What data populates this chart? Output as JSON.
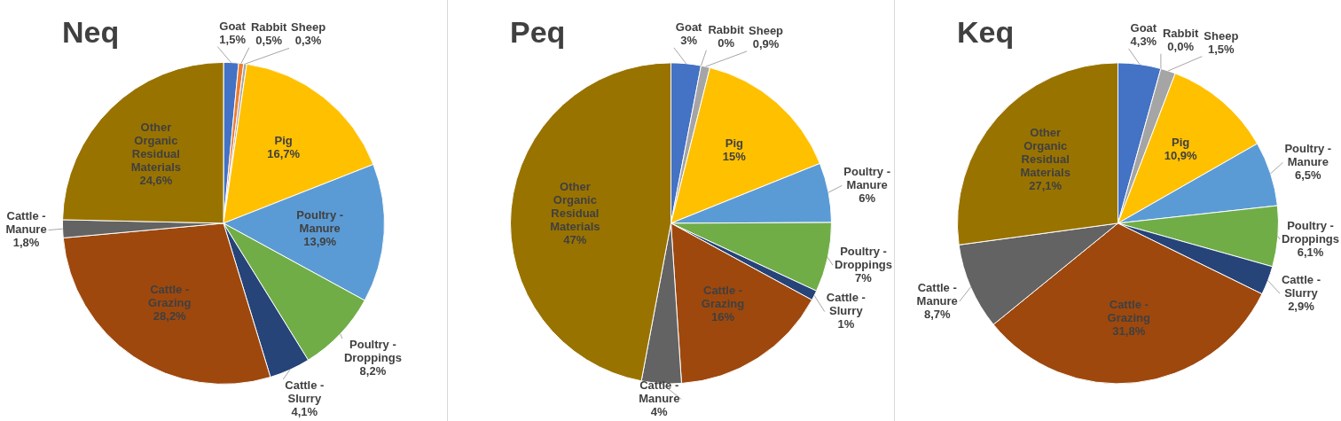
{
  "chart_data": [
    {
      "type": "pie",
      "title": "Neq",
      "legend": false,
      "categories": [
        "Goat",
        "Rabbit",
        "Sheep",
        "Pig",
        "Poultry - Manure",
        "Poultry - Droppings",
        "Cattle - Slurry",
        "Cattle - Grazing",
        "Cattle - Manure",
        "Other Organic Residual Materials"
      ],
      "values": [
        1.5,
        0.5,
        0.3,
        16.7,
        13.9,
        8.2,
        4.1,
        28.2,
        1.8,
        24.6
      ],
      "value_labels": [
        "1,5%",
        "0,5%",
        "0,3%",
        "16,7%",
        "13,9%",
        "8,2%",
        "4,1%",
        "28,2%",
        "1,8%",
        "24,6%"
      ],
      "colors": [
        "#4472c4",
        "#ed7d31",
        "#a5a5a5",
        "#ffc000",
        "#5b9bd5",
        "#70ad47",
        "#264478",
        "#9e480e",
        "#636363",
        "#997300"
      ]
    },
    {
      "type": "pie",
      "title": "Peq",
      "legend": false,
      "categories": [
        "Goat",
        "Rabbit",
        "Sheep",
        "Pig",
        "Poultry - Manure",
        "Poultry - Droppings",
        "Cattle - Slurry",
        "Cattle - Grazing",
        "Cattle - Manure",
        "Other Organic Residual Materials"
      ],
      "values": [
        3,
        0,
        0.9,
        15,
        6,
        7,
        1,
        16,
        4,
        47
      ],
      "value_labels": [
        "3%",
        "0%",
        "0,9%",
        "15%",
        "6%",
        "7%",
        "1%",
        "16%",
        "4%",
        "47%"
      ],
      "colors": [
        "#4472c4",
        "#ed7d31",
        "#a5a5a5",
        "#ffc000",
        "#5b9bd5",
        "#70ad47",
        "#264478",
        "#9e480e",
        "#636363",
        "#997300"
      ]
    },
    {
      "type": "pie",
      "title": "Keq",
      "legend": false,
      "categories": [
        "Goat",
        "Rabbit",
        "Sheep",
        "Pig",
        "Poultry - Manure",
        "Poultry - Droppings",
        "Cattle - Slurry",
        "Cattle - Grazing",
        "Cattle - Manure",
        "Other Organic Residual Materials"
      ],
      "values": [
        4.3,
        0.0,
        1.5,
        10.9,
        6.5,
        6.1,
        2.9,
        31.8,
        8.7,
        27.1
      ],
      "value_labels": [
        "4,3%",
        "0,0%",
        "1,5%",
        "10,9%",
        "6,5%",
        "6,1%",
        "2,9%",
        "31,8%",
        "8,7%",
        "27,1%"
      ],
      "colors": [
        "#4472c4",
        "#ed7d31",
        "#a5a5a5",
        "#ffc000",
        "#5b9bd5",
        "#70ad47",
        "#264478",
        "#9e480e",
        "#636363",
        "#997300"
      ]
    }
  ]
}
